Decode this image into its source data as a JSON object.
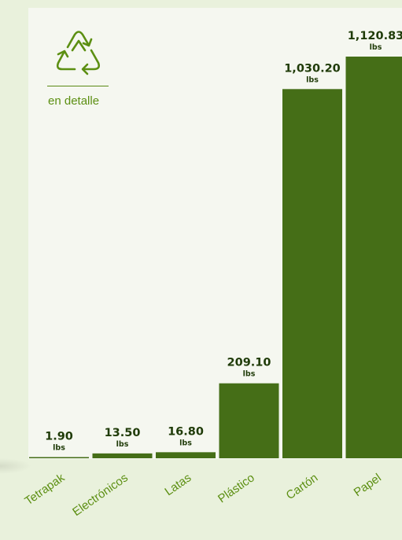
{
  "logo": {
    "icon": "recycle-icon",
    "caption": "en detalle",
    "color": "#5c8f12"
  },
  "chart_data": {
    "type": "bar",
    "categories": [
      "Tetrapak",
      "Electrónicos",
      "Latas",
      "Plástico",
      "Cartón",
      "Papel"
    ],
    "values": [
      1.9,
      13.5,
      16.8,
      209.1,
      1030.2,
      1120.83
    ],
    "value_labels": [
      "1.90",
      "13.50",
      "16.80",
      "209.10",
      "1,030.20",
      "1,120.83"
    ],
    "unit": "lbs",
    "ylim": [
      0,
      1120.83
    ],
    "grid": false,
    "bar_color": "#456e17",
    "title": "",
    "xlabel": "",
    "ylabel": ""
  }
}
